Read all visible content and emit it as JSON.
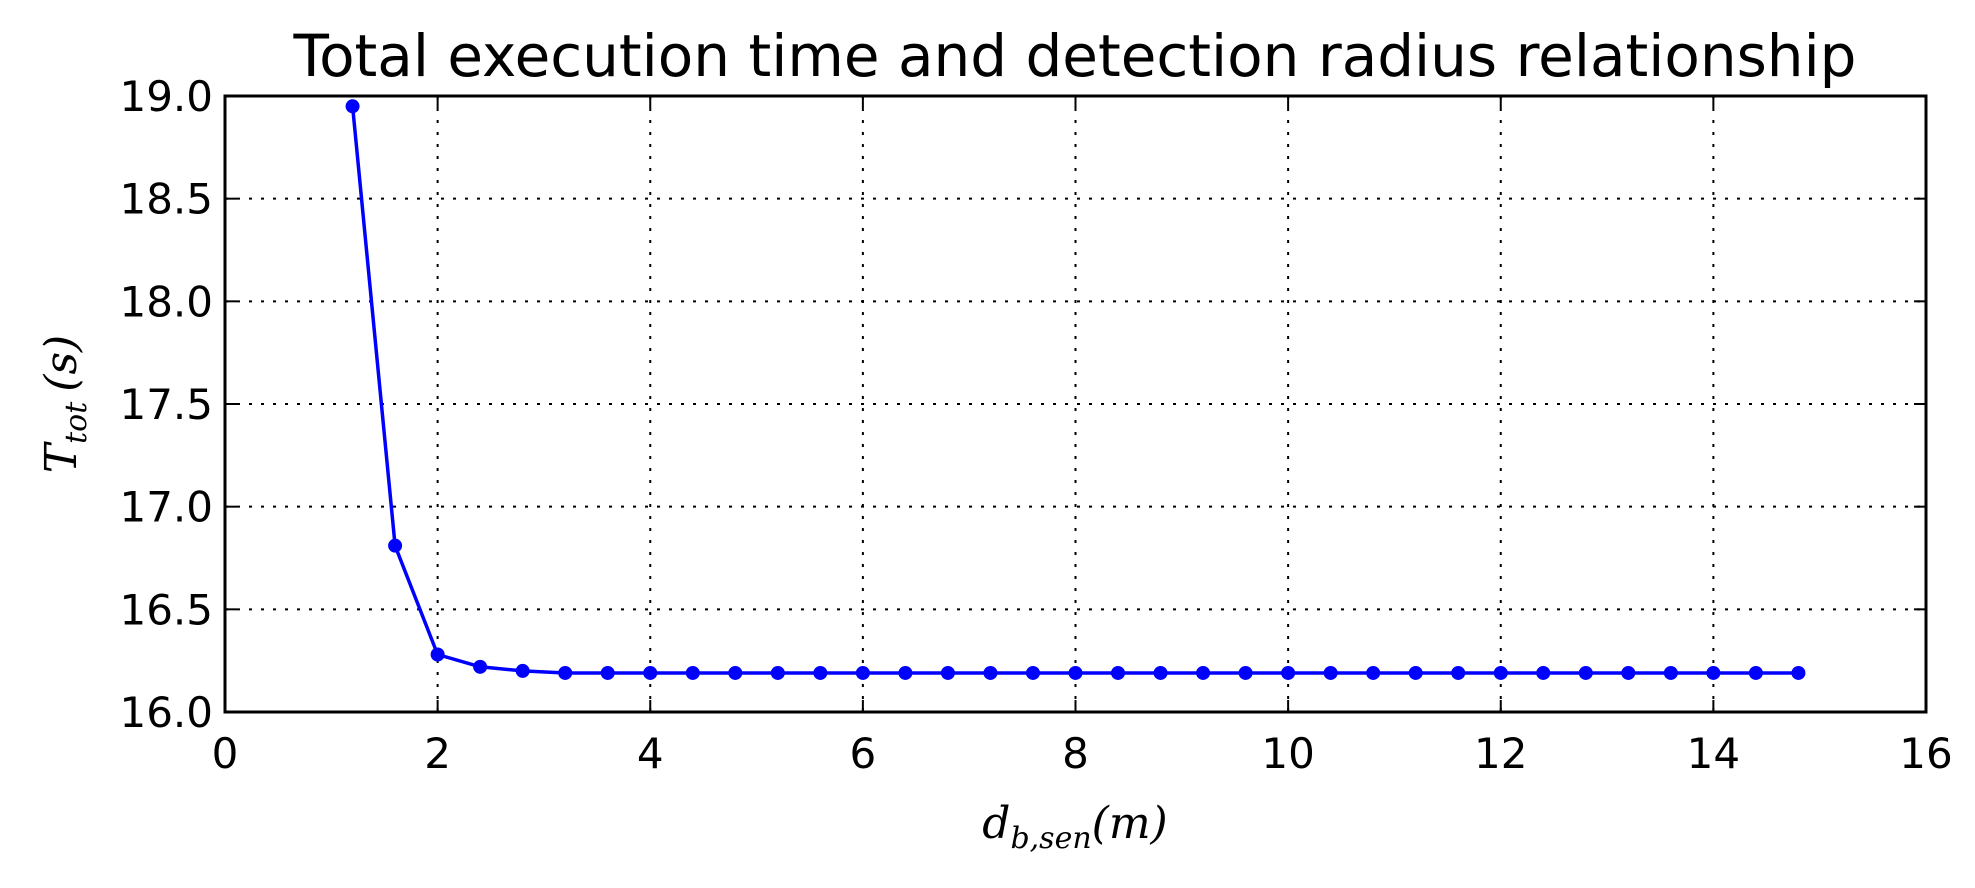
{
  "chart_data": {
    "type": "line",
    "title": "Total execution time and detection radius relationship",
    "xlabel": {
      "base": "d",
      "sub": "b,sen",
      "tail": "(m)"
    },
    "ylabel": {
      "base": "T",
      "sub": "tot",
      "tail": "(s)"
    },
    "xlim": [
      0,
      16
    ],
    "ylim": [
      16.0,
      19.0
    ],
    "xticks": [
      0,
      2,
      4,
      6,
      8,
      10,
      12,
      14,
      16
    ],
    "xtick_labels": [
      "0",
      "2",
      "4",
      "6",
      "8",
      "10",
      "12",
      "14",
      "16"
    ],
    "yticks": [
      16.0,
      16.5,
      17.0,
      17.5,
      18.0,
      18.5,
      19.0
    ],
    "ytick_labels": [
      "16.0",
      "16.5",
      "17.0",
      "17.5",
      "18.0",
      "18.5",
      "19.0"
    ],
    "grid": true,
    "series": [
      {
        "color": "#0000ff",
        "marker": "circle",
        "x": [
          1.2,
          1.6,
          2.0,
          2.4,
          2.8,
          3.2,
          3.6,
          4.0,
          4.4,
          4.8,
          5.2,
          5.6,
          6.0,
          6.4,
          6.8,
          7.2,
          7.6,
          8.0,
          8.4,
          8.8,
          9.2,
          9.6,
          10.0,
          10.4,
          10.8,
          11.2,
          11.6,
          12.0,
          12.4,
          12.8,
          13.2,
          13.6,
          14.0,
          14.4,
          14.8
        ],
        "y": [
          18.95,
          16.81,
          16.28,
          16.22,
          16.2,
          16.19,
          16.19,
          16.19,
          16.19,
          16.19,
          16.19,
          16.19,
          16.19,
          16.19,
          16.19,
          16.19,
          16.19,
          16.19,
          16.19,
          16.19,
          16.19,
          16.19,
          16.19,
          16.19,
          16.19,
          16.19,
          16.19,
          16.19,
          16.19,
          16.19,
          16.19,
          16.19,
          16.19,
          16.19,
          16.19
        ]
      }
    ]
  }
}
